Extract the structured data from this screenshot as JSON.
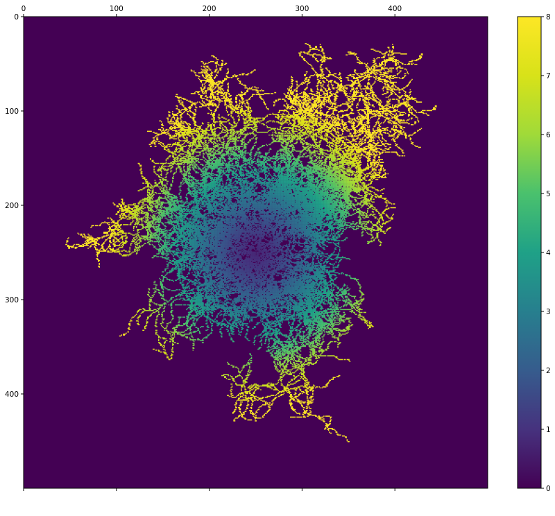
{
  "chart_data": {
    "type": "heatmap",
    "title": "",
    "xlabel": "",
    "ylabel": "",
    "grid": false,
    "x_axis_position": "top",
    "xlim": [
      0,
      500
    ],
    "ylim": [
      500,
      0
    ],
    "x_ticks": [
      0,
      100,
      200,
      300,
      400
    ],
    "y_ticks": [
      0,
      100,
      200,
      300,
      400
    ],
    "colormap": "viridis",
    "colorbar": {
      "range": [
        0,
        8
      ],
      "ticks": [
        0,
        1,
        2,
        3,
        4,
        5,
        6,
        7,
        8
      ],
      "placement": "right"
    },
    "background_value": 0,
    "structure": "diffusion-limited aggregation cluster centered near (250, 250); values increase from the center outward",
    "branches": [
      {
        "tip": [
          265,
          90
        ],
        "level": 8
      },
      {
        "tip": [
          150,
          310
        ],
        "level": 8
      },
      {
        "tip": [
          330,
          335
        ],
        "level": 8
      }
    ]
  }
}
